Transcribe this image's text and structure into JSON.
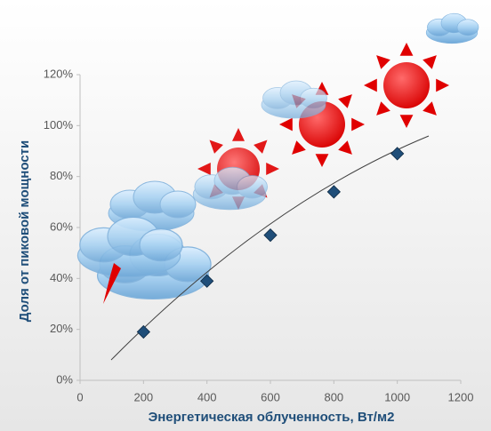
{
  "chart_data": {
    "type": "scatter",
    "x_label": "Энергетическая облученность, Вт/м2",
    "y_label": "Доля от пиковой мощности",
    "x": [
      200,
      400,
      600,
      800,
      1000
    ],
    "values": [
      19,
      39,
      57,
      74,
      89
    ],
    "color": "#1f4e79",
    "xlim": [
      0,
      1200
    ],
    "xticks": [
      0,
      200,
      400,
      600,
      800,
      1000,
      1200
    ],
    "ylim": [
      0,
      120
    ],
    "yticks": [
      {
        "value": 0,
        "label": "0%"
      },
      {
        "value": 20,
        "label": "20%"
      },
      {
        "value": 40,
        "label": "40%"
      },
      {
        "value": 60,
        "label": "60%"
      },
      {
        "value": 80,
        "label": "80%"
      },
      {
        "value": 100,
        "label": "100%"
      },
      {
        "value": 120,
        "label": "120%"
      }
    ],
    "grid": false
  }
}
